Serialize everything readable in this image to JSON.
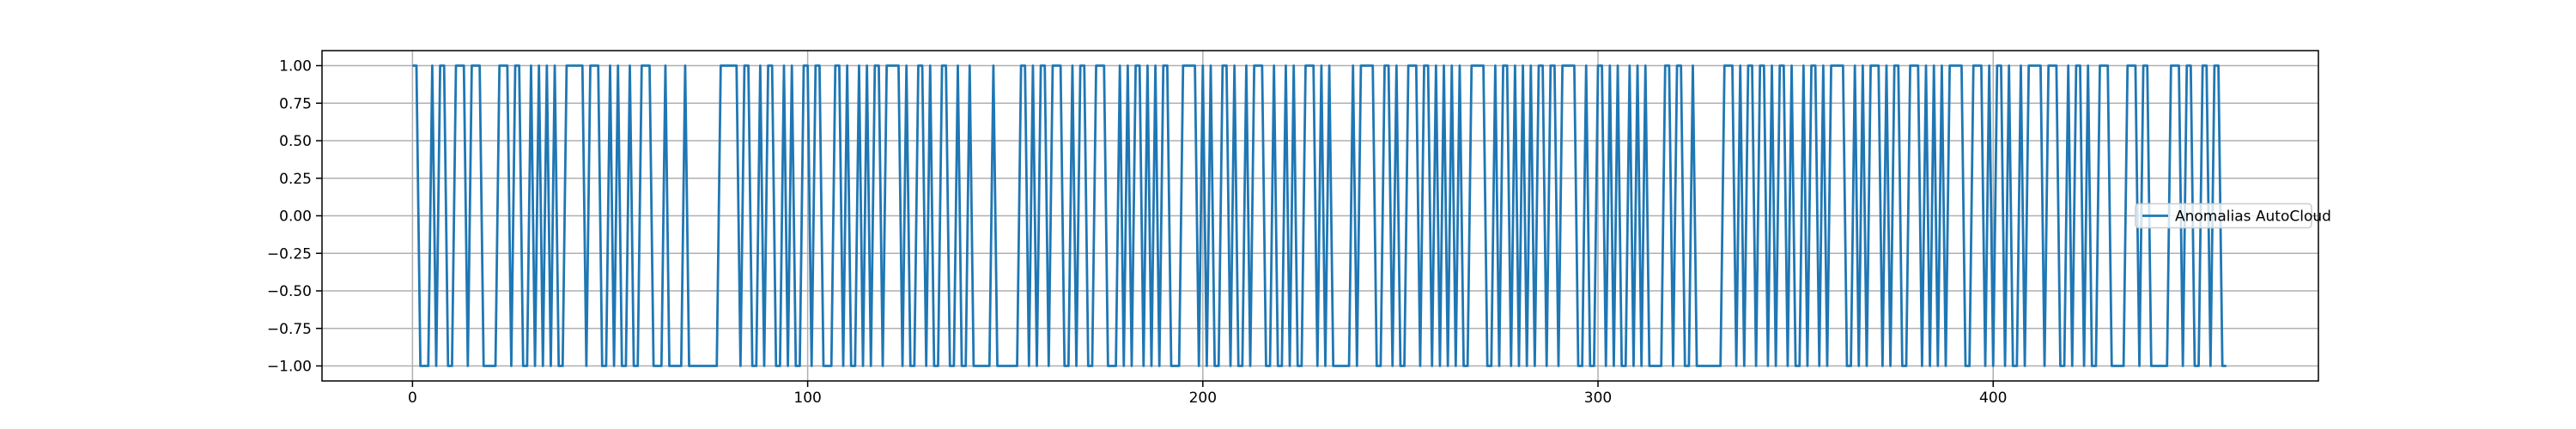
{
  "chart_data": {
    "type": "line",
    "x": [
      0,
      1,
      2,
      3,
      4,
      5,
      6,
      7,
      8,
      9,
      10,
      11,
      12,
      13,
      14,
      15,
      16,
      17,
      18,
      19,
      20,
      21,
      22,
      23,
      24,
      25,
      26,
      27,
      28,
      29,
      30,
      31,
      32,
      33,
      34,
      35,
      36,
      37,
      38,
      39,
      40,
      41,
      42,
      43,
      44,
      45,
      46,
      47,
      48,
      49,
      50,
      51,
      52,
      53,
      54,
      55,
      56,
      57,
      58,
      59,
      60,
      61,
      62,
      63,
      64,
      65,
      66,
      67,
      68,
      69,
      70,
      71,
      72,
      73,
      74,
      75,
      76,
      77,
      78,
      79,
      80,
      81,
      82,
      83,
      84,
      85,
      86,
      87,
      88,
      89,
      90,
      91,
      92,
      93,
      94,
      95,
      96,
      97,
      98,
      99,
      100,
      101,
      102,
      103,
      104,
      105,
      106,
      107,
      108,
      109,
      110,
      111,
      112,
      113,
      114,
      115,
      116,
      117,
      118,
      119,
      120,
      121,
      122,
      123,
      124,
      125,
      126,
      127,
      128,
      129,
      130,
      131,
      132,
      133,
      134,
      135,
      136,
      137,
      138,
      139,
      140,
      141,
      142,
      143,
      144,
      145,
      146,
      147,
      148,
      149,
      150,
      151,
      152,
      153,
      154,
      155,
      156,
      157,
      158,
      159,
      160,
      161,
      162,
      163,
      164,
      165,
      166,
      167,
      168,
      169,
      170,
      171,
      172,
      173,
      174,
      175,
      176,
      177,
      178,
      179,
      180,
      181,
      182,
      183,
      184,
      185,
      186,
      187,
      188,
      189,
      190,
      191,
      192,
      193,
      194,
      195,
      196,
      197,
      198,
      199,
      200,
      201,
      202,
      203,
      204,
      205,
      206,
      207,
      208,
      209,
      210,
      211,
      212,
      213,
      214,
      215,
      216,
      217,
      218,
      219,
      220,
      221,
      222,
      223,
      224,
      225,
      226,
      227,
      228,
      229,
      230,
      231,
      232,
      233,
      234,
      235,
      236,
      237,
      238,
      239,
      240,
      241,
      242,
      243,
      244,
      245,
      246,
      247,
      248,
      249,
      250,
      251,
      252,
      253,
      254,
      255,
      256,
      257,
      258,
      259,
      260,
      261,
      262,
      263,
      264,
      265,
      266,
      267,
      268,
      269,
      270,
      271,
      272,
      273,
      274,
      275,
      276,
      277,
      278,
      279,
      280,
      281,
      282,
      283,
      284,
      285,
      286,
      287,
      288,
      289,
      290,
      291,
      292,
      293,
      294,
      295,
      296,
      297,
      298,
      299,
      300,
      301,
      302,
      303,
      304,
      305,
      306,
      307,
      308,
      309,
      310,
      311,
      312,
      313,
      314,
      315,
      316,
      317,
      318,
      319,
      320,
      321,
      322,
      323,
      324,
      325,
      326,
      327,
      328,
      329,
      330,
      331,
      332,
      333,
      334,
      335,
      336,
      337,
      338,
      339,
      340,
      341,
      342,
      343,
      344,
      345,
      346,
      347,
      348,
      349,
      350,
      351,
      352,
      353,
      354,
      355,
      356,
      357,
      358,
      359,
      360,
      361,
      362,
      363,
      364,
      365,
      366,
      367,
      368,
      369,
      370,
      371,
      372,
      373,
      374,
      375,
      376,
      377,
      378,
      379,
      380,
      381,
      382,
      383,
      384,
      385,
      386,
      387,
      388,
      389,
      390,
      391,
      392,
      393,
      394,
      395,
      396,
      397,
      398,
      399,
      400,
      401,
      402,
      403,
      404,
      405,
      406,
      407,
      408,
      409,
      410,
      411,
      412,
      413,
      414,
      415,
      416,
      417,
      418,
      419,
      420,
      421,
      422,
      423,
      424,
      425,
      426,
      427,
      428,
      429,
      430,
      431,
      432,
      433,
      434,
      435,
      436,
      437,
      438,
      439,
      440,
      441,
      442,
      443,
      444,
      445,
      446,
      447,
      448,
      449,
      450,
      451,
      452,
      453,
      454,
      455,
      456,
      457,
      458,
      459
    ],
    "series": [
      {
        "name": "Anomalias AutoCloud",
        "color": "#1f77b4",
        "values": [
          1,
          1,
          -1,
          -1,
          -1,
          1,
          -1,
          1,
          1,
          -1,
          -1,
          1,
          1,
          1,
          -1,
          1,
          1,
          1,
          -1,
          -1,
          -1,
          -1,
          1,
          1,
          1,
          -1,
          1,
          1,
          -1,
          -1,
          1,
          -1,
          1,
          -1,
          1,
          -1,
          1,
          -1,
          -1,
          1,
          1,
          1,
          1,
          1,
          -1,
          1,
          1,
          1,
          -1,
          -1,
          1,
          -1,
          1,
          -1,
          -1,
          1,
          -1,
          -1,
          1,
          1,
          1,
          -1,
          -1,
          -1,
          1,
          -1,
          -1,
          -1,
          -1,
          1,
          -1,
          -1,
          -1,
          -1,
          -1,
          -1,
          -1,
          -1,
          1,
          1,
          1,
          1,
          1,
          -1,
          1,
          1,
          -1,
          -1,
          1,
          -1,
          1,
          1,
          -1,
          -1,
          1,
          -1,
          1,
          -1,
          -1,
          1,
          1,
          -1,
          1,
          1,
          -1,
          -1,
          -1,
          1,
          1,
          -1,
          1,
          -1,
          -1,
          1,
          -1,
          1,
          -1,
          1,
          1,
          -1,
          1,
          1,
          1,
          1,
          -1,
          1,
          -1,
          -1,
          1,
          1,
          -1,
          1,
          -1,
          -1,
          1,
          1,
          -1,
          -1,
          1,
          -1,
          -1,
          1,
          -1,
          -1,
          -1,
          -1,
          -1,
          1,
          -1,
          -1,
          -1,
          -1,
          -1,
          -1,
          1,
          1,
          -1,
          1,
          -1,
          1,
          1,
          -1,
          1,
          1,
          1,
          -1,
          -1,
          1,
          -1,
          1,
          1,
          -1,
          -1,
          1,
          1,
          1,
          -1,
          -1,
          -1,
          1,
          -1,
          1,
          -1,
          1,
          1,
          -1,
          1,
          -1,
          1,
          -1,
          1,
          1,
          -1,
          -1,
          -1,
          1,
          1,
          1,
          1,
          -1,
          1,
          -1,
          1,
          -1,
          -1,
          1,
          1,
          -1,
          1,
          -1,
          -1,
          1,
          -1,
          1,
          1,
          1,
          -1,
          -1,
          1,
          -1,
          -1,
          1,
          -1,
          1,
          -1,
          -1,
          1,
          1,
          1,
          -1,
          1,
          -1,
          1,
          -1,
          -1,
          -1,
          -1,
          -1,
          1,
          -1,
          1,
          1,
          1,
          1,
          -1,
          -1,
          1,
          1,
          -1,
          1,
          -1,
          -1,
          1,
          1,
          1,
          -1,
          1,
          1,
          -1,
          1,
          -1,
          1,
          -1,
          1,
          -1,
          1,
          -1,
          -1,
          1,
          1,
          1,
          1,
          -1,
          -1,
          1,
          -1,
          1,
          1,
          -1,
          1,
          -1,
          1,
          -1,
          1,
          -1,
          1,
          1,
          -1,
          1,
          1,
          -1,
          1,
          1,
          1,
          1,
          -1,
          -1,
          1,
          -1,
          -1,
          1,
          1,
          -1,
          1,
          -1,
          1,
          -1,
          -1,
          1,
          -1,
          1,
          -1,
          1,
          -1,
          -1,
          -1,
          -1,
          1,
          1,
          -1,
          1,
          1,
          -1,
          -1,
          1,
          -1,
          -1,
          -1,
          -1,
          -1,
          -1,
          -1,
          1,
          1,
          1,
          -1,
          1,
          -1,
          1,
          1,
          -1,
          1,
          1,
          -1,
          1,
          -1,
          1,
          1,
          -1,
          1,
          -1,
          -1,
          1,
          -1,
          1,
          1,
          -1,
          1,
          -1,
          1,
          1,
          1,
          1,
          -1,
          -1,
          1,
          -1,
          1,
          -1,
          1,
          1,
          1,
          -1,
          1,
          -1,
          1,
          1,
          -1,
          -1,
          1,
          1,
          1,
          -1,
          1,
          -1,
          1,
          -1,
          1,
          -1,
          1,
          1,
          1,
          1,
          -1,
          -1,
          1,
          1,
          1,
          -1,
          1,
          -1,
          1,
          1,
          -1,
          1,
          -1,
          -1,
          1,
          -1,
          1,
          1,
          1,
          1,
          -1,
          1,
          1,
          1,
          -1,
          -1,
          1,
          -1,
          1,
          1,
          -1,
          1,
          -1,
          -1,
          1,
          1,
          1,
          -1,
          -1,
          -1,
          -1,
          1,
          1,
          1,
          -1,
          1,
          1,
          -1,
          -1,
          -1,
          -1,
          -1,
          1,
          1,
          1,
          -1,
          1,
          1,
          -1,
          -1,
          1,
          1,
          -1,
          1,
          1,
          -1,
          -1
        ]
      }
    ],
    "xlim": [
      -22.9,
      482.3
    ],
    "xticks": [
      0,
      100,
      200,
      300,
      400
    ],
    "ylim": [
      -1.1,
      1.1
    ],
    "yticks": [
      {
        "value": -1,
        "label": "−1.00"
      },
      {
        "value": -0.75,
        "label": "−0.75"
      },
      {
        "value": -0.5,
        "label": "−0.50"
      },
      {
        "value": -0.25,
        "label": "−0.25"
      },
      {
        "value": 0,
        "label": "0.00"
      },
      {
        "value": 0.25,
        "label": "0.25"
      },
      {
        "value": 0.5,
        "label": "0.50"
      },
      {
        "value": 0.75,
        "label": "0.75"
      },
      {
        "value": 1,
        "label": "1.00"
      }
    ],
    "grid": true,
    "legend": "center right"
  }
}
